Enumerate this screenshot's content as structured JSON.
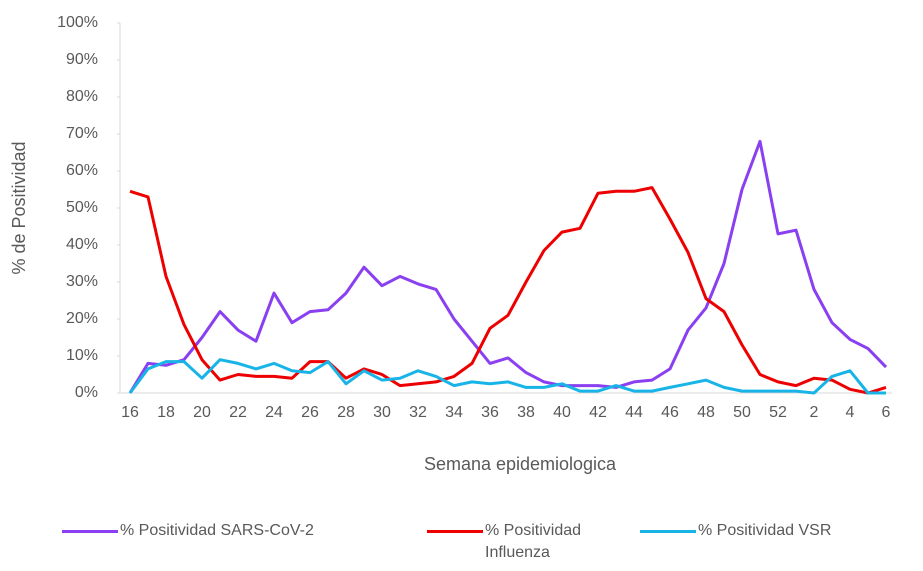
{
  "chart_data": {
    "type": "line",
    "x_label": "Semana epidemiologica",
    "y_label": "% de Positividad",
    "categories": [
      16,
      null,
      18,
      null,
      20,
      null,
      22,
      null,
      24,
      null,
      26,
      null,
      28,
      null,
      30,
      null,
      32,
      null,
      34,
      null,
      36,
      null,
      38,
      null,
      40,
      null,
      42,
      null,
      44,
      null,
      46,
      null,
      48,
      null,
      50,
      null,
      52,
      null,
      2,
      null,
      4,
      null,
      6
    ],
    "ylim": [
      0,
      100
    ],
    "yticks": [
      {
        "value": 0,
        "label": "0%"
      },
      {
        "value": 10,
        "label": "10%"
      },
      {
        "value": 20,
        "label": "20%"
      },
      {
        "value": 30,
        "label": "30%"
      },
      {
        "value": 40,
        "label": "40%"
      },
      {
        "value": 50,
        "label": "50%"
      },
      {
        "value": 60,
        "label": "60%"
      },
      {
        "value": 70,
        "label": "70%"
      },
      {
        "value": 80,
        "label": "80%"
      },
      {
        "value": 90,
        "label": "90%"
      },
      {
        "value": 100,
        "label": "100%"
      }
    ],
    "grid": false,
    "legend": "bottom",
    "series": [
      {
        "name": "% Positividad SARS-CoV-2",
        "color": "#8a3ff0",
        "values": [
          0,
          8,
          7.5,
          9,
          15,
          22,
          17,
          14,
          27,
          19,
          22,
          22.5,
          27,
          34,
          29,
          31.5,
          29.5,
          28,
          20,
          14,
          8,
          9.5,
          5.5,
          3,
          2,
          2,
          2,
          1.5,
          3,
          3.5,
          6.5,
          17,
          23,
          35,
          55,
          68,
          43,
          44,
          28,
          19,
          14.5,
          12,
          7
        ]
      },
      {
        "name": "% Positividad Influenza",
        "color": "#ee0000",
        "values": [
          54.5,
          53,
          31.5,
          18.5,
          9,
          3.5,
          5,
          4.5,
          4.5,
          4,
          8.5,
          8.5,
          4,
          6.5,
          5,
          2,
          2.5,
          3,
          4.5,
          8,
          17.5,
          21,
          30,
          38.5,
          43.5,
          44.5,
          54,
          54.5,
          54.5,
          55.5,
          47,
          38,
          25.5,
          22,
          13,
          5,
          3,
          2,
          4,
          3.5,
          1,
          0,
          1.5
        ]
      },
      {
        "name": "% Positividad VSR",
        "color": "#18b4e8",
        "values": [
          0,
          6.5,
          8.5,
          8.5,
          4,
          9,
          8,
          6.5,
          8,
          6,
          5.5,
          8.5,
          2.5,
          6,
          3.5,
          4,
          6,
          4.5,
          2,
          3,
          2.5,
          3,
          1.5,
          1.5,
          2.5,
          0.5,
          0.5,
          2,
          0.5,
          0.5,
          1.5,
          2.5,
          3.5,
          1.5,
          0.5,
          0.5,
          0.5,
          0.5,
          0,
          4.5,
          6,
          0,
          0
        ]
      }
    ]
  }
}
